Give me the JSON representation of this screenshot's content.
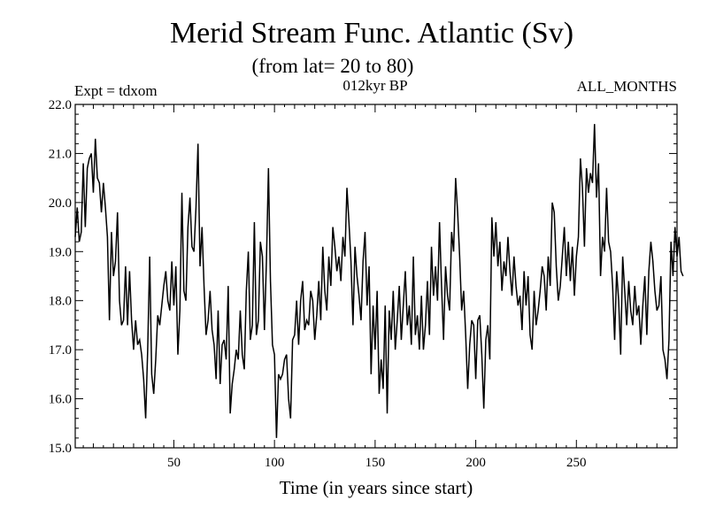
{
  "chart_data": {
    "type": "line",
    "title": "Merid Stream Func. Atlantic (Sv)",
    "subtitle": "(from lat= 20 to 80)",
    "header_left": "Expt = tdxom",
    "header_center": "012kyr BP",
    "header_right": "ALL_MONTHS",
    "xlabel": "Time (in years since start)",
    "ylabel": "",
    "xlim": [
      1,
      300
    ],
    "ylim": [
      15.0,
      22.0
    ],
    "x_ticks": [
      50,
      100,
      150,
      200,
      250
    ],
    "y_ticks": [
      15.0,
      16.0,
      17.0,
      18.0,
      19.0,
      20.0,
      21.0,
      22.0
    ],
    "y_tick_labels": [
      "15.0",
      "16.0",
      "17.0",
      "18.0",
      "19.0",
      "20.0",
      "21.0",
      "22.0"
    ],
    "grid": false,
    "series": [
      {
        "x_start": 1,
        "x_step": 1,
        "values": [
          19.3,
          19.9,
          19.2,
          19.4,
          20.8,
          19.5,
          20.7,
          20.9,
          21.0,
          20.2,
          21.3,
          20.5,
          20.4,
          19.8,
          20.4,
          19.9,
          19.3,
          17.6,
          19.4,
          18.5,
          18.8,
          19.8,
          18.0,
          17.5,
          17.6,
          18.7,
          17.5,
          18.6,
          17.6,
          17.0,
          17.6,
          17.1,
          17.2,
          16.9,
          16.4,
          15.6,
          17.0,
          18.9,
          16.5,
          16.1,
          16.8,
          17.7,
          17.5,
          17.9,
          18.3,
          18.6,
          18.0,
          17.8,
          18.8,
          17.9,
          18.7,
          16.9,
          17.8,
          20.2,
          18.2,
          18.0,
          19.5,
          20.1,
          19.1,
          19.0,
          19.9,
          21.2,
          18.7,
          19.5,
          18.3,
          17.3,
          17.6,
          18.2,
          17.4,
          17.1,
          16.4,
          17.8,
          16.3,
          17.1,
          17.2,
          16.8,
          18.3,
          15.7,
          16.3,
          16.6,
          17.0,
          16.8,
          17.8,
          16.9,
          16.6,
          18.2,
          19.0,
          17.2,
          17.5,
          19.6,
          17.3,
          17.6,
          19.2,
          18.9,
          17.4,
          18.8,
          20.7,
          18.4,
          17.1,
          16.9,
          15.2,
          16.5,
          16.4,
          16.5,
          16.8,
          16.9,
          16.0,
          15.6,
          17.2,
          17.3,
          18.0,
          17.1,
          18.0,
          18.4,
          17.4,
          17.6,
          17.5,
          18.2,
          18.0,
          17.2,
          17.7,
          18.4,
          17.6,
          19.1,
          18.2,
          17.8,
          18.9,
          18.3,
          19.5,
          19.1,
          18.6,
          18.9,
          18.4,
          19.3,
          18.9,
          20.3,
          19.6,
          18.8,
          17.5,
          19.1,
          18.5,
          18.1,
          17.6,
          18.8,
          19.4,
          17.9,
          18.7,
          16.5,
          17.9,
          17.0,
          18.2,
          16.1,
          16.8,
          16.2,
          17.9,
          15.7,
          17.8,
          17.2,
          18.2,
          17.0,
          17.6,
          18.3,
          17.2,
          17.9,
          18.6,
          17.5,
          17.9,
          17.1,
          18.9,
          17.3,
          17.7,
          17.0,
          18.1,
          17.0,
          17.5,
          18.4,
          17.3,
          19.1,
          18.1,
          18.7,
          18.0,
          19.6,
          18.3,
          17.2,
          18.7,
          18.1,
          17.8,
          19.4,
          19.0,
          20.5,
          19.8,
          18.9,
          17.8,
          18.2,
          17.3,
          16.2,
          17.1,
          17.6,
          17.5,
          16.4,
          17.6,
          17.7,
          16.9,
          15.8,
          17.2,
          17.5,
          16.8,
          19.7,
          18.9,
          19.6,
          18.7,
          19.2,
          18.2,
          18.8,
          18.5,
          19.3,
          18.6,
          18.1,
          18.9,
          18.3,
          17.9,
          18.1,
          17.4,
          18.6,
          17.9,
          18.5,
          17.3,
          17.0,
          18.2,
          17.5,
          17.8,
          18.2,
          18.7,
          18.5,
          17.8,
          18.9,
          18.3,
          20.0,
          19.8,
          18.7,
          18.0,
          18.3,
          18.9,
          19.5,
          18.5,
          19.2,
          18.4,
          19.1,
          18.1,
          18.9,
          19.3,
          20.9,
          20.3,
          19.1,
          20.7,
          20.2,
          20.6,
          20.4,
          21.6,
          20.1,
          20.8,
          18.5,
          19.3,
          19.0,
          20.3,
          19.2,
          19.0,
          18.3,
          17.2,
          18.6,
          18.0,
          16.9,
          18.9,
          18.2,
          17.5,
          18.4,
          17.8,
          17.5,
          18.3,
          17.7,
          17.9,
          17.1,
          17.9,
          18.5,
          17.3,
          18.6,
          19.2,
          18.8,
          18.2,
          17.8,
          17.9,
          18.5,
          17.0,
          16.8,
          16.4,
          17.2,
          19.2,
          18.5,
          19.5,
          18.9,
          19.3,
          18.6,
          18.5
        ]
      }
    ]
  }
}
